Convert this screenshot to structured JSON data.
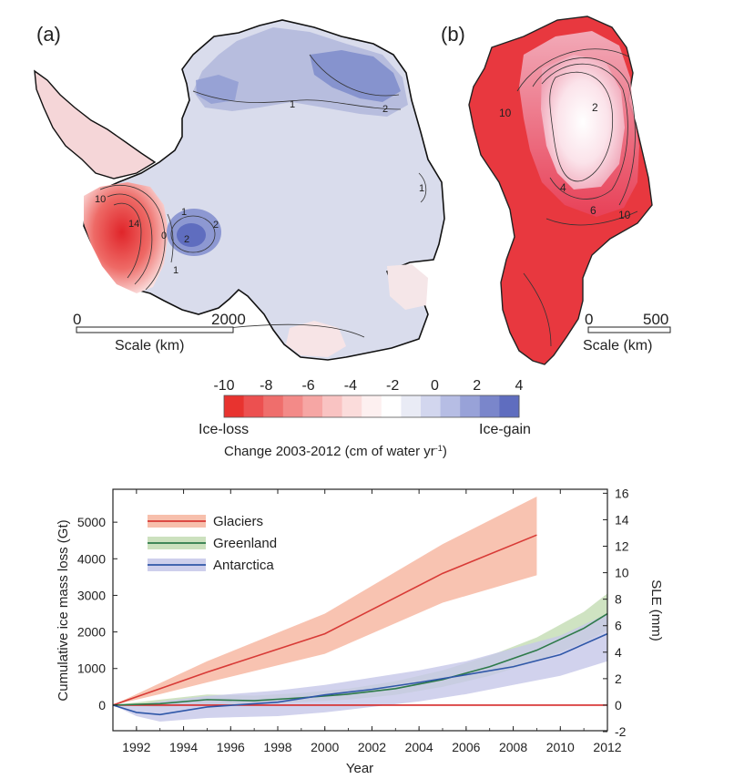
{
  "panels": {
    "a": {
      "label": "(a)",
      "scale": {
        "start": "0",
        "end": "2000",
        "caption": "Scale (km)"
      },
      "contours": [
        "1",
        "2",
        "1",
        "1",
        "2",
        "0",
        "10",
        "14",
        "2",
        "1"
      ]
    },
    "b": {
      "label": "(b)",
      "scale": {
        "start": "0",
        "end": "500",
        "caption": "Scale (km)"
      },
      "contours": [
        "10",
        "2",
        "4",
        "6",
        "10"
      ]
    }
  },
  "colorbar": {
    "ticks": [
      "-10",
      "-8",
      "-6",
      "-4",
      "-2",
      "0",
      "2",
      "4"
    ],
    "left_label": "Ice-loss",
    "right_label": "Ice-gain",
    "caption_main": "Change 2003-2012 (cm of water yr",
    "caption_sup": "-1",
    "caption_end": ")",
    "colors": [
      "#e8332f",
      "#ec5050",
      "#ef6e6c",
      "#f38a88",
      "#f6a6a4",
      "#f9c3c2",
      "#fbdcdb",
      "#fdf0f0",
      "#ffffff",
      "#e9ebf5",
      "#d2d6ee",
      "#b6bde4",
      "#98a2d8",
      "#7a86cb",
      "#5f6dbf"
    ]
  },
  "chart_data": {
    "type": "line",
    "xlabel": "Year",
    "ylabel": "Cumulative ice mass loss (Gt)",
    "ylabel_right": "SLE (mm)",
    "xlim": [
      1991,
      2012
    ],
    "ylim": [
      -700,
      5900
    ],
    "ylim_right": [
      -1.93,
      16.3
    ],
    "xticks": [
      "1992",
      "1994",
      "1996",
      "1998",
      "2000",
      "2002",
      "2004",
      "2006",
      "2008",
      "2010",
      "2012"
    ],
    "yticks": [
      0,
      1000,
      2000,
      3000,
      4000,
      5000
    ],
    "yticks_right": [
      -2,
      0,
      2,
      4,
      6,
      8,
      10,
      12,
      14,
      16
    ],
    "zero_line_color": "#d62a2a",
    "legend_position": "top-left",
    "series": [
      {
        "name": "Glaciers",
        "color": "#d83a36",
        "band_color": "#f6b49e",
        "x": [
          1991,
          1993,
          1995,
          2000,
          2005,
          2009
        ],
        "values": [
          0,
          450,
          900,
          1950,
          3600,
          4650
        ],
        "lower": [
          0,
          300,
          620,
          1400,
          2800,
          3550
        ],
        "upper": [
          0,
          600,
          1200,
          2500,
          4400,
          5700
        ]
      },
      {
        "name": "Greenland",
        "color": "#2d7a49",
        "band_color": "#c3dcb3",
        "x": [
          1991,
          1993,
          1995,
          1997,
          1999,
          2001,
          2003,
          2005,
          2007,
          2009,
          2011,
          2012
        ],
        "values": [
          0,
          40,
          150,
          120,
          200,
          300,
          450,
          700,
          1050,
          1500,
          2100,
          2500
        ],
        "lower": [
          0,
          -60,
          20,
          0,
          80,
          150,
          280,
          500,
          800,
          1200,
          1700,
          2050
        ],
        "upper": [
          0,
          150,
          290,
          260,
          330,
          450,
          650,
          950,
          1350,
          1850,
          2550,
          3050
        ]
      },
      {
        "name": "Antarctica",
        "color": "#2f57a8",
        "band_color": "#c5c7e9",
        "x": [
          1991,
          1992,
          1993,
          1995,
          1998,
          2000,
          2002,
          2004,
          2006,
          2008,
          2010,
          2012
        ],
        "values": [
          0,
          -200,
          -260,
          -50,
          80,
          280,
          430,
          620,
          830,
          1050,
          1380,
          1950
        ],
        "lower": [
          0,
          -300,
          -450,
          -350,
          -300,
          -200,
          -50,
          100,
          300,
          550,
          800,
          1200
        ],
        "upper": [
          0,
          0,
          100,
          250,
          400,
          550,
          750,
          950,
          1200,
          1550,
          1900,
          2500
        ]
      }
    ]
  }
}
